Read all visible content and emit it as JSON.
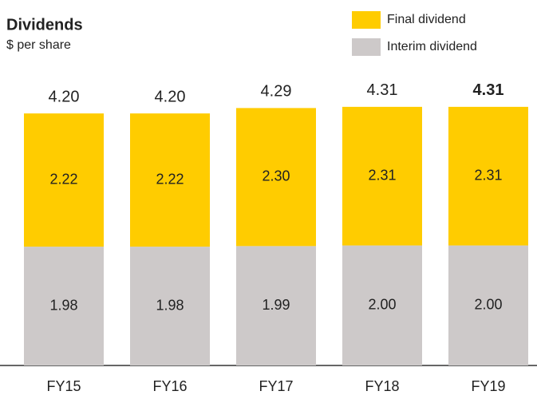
{
  "chart_data": {
    "type": "stacked_bar",
    "title": "Dividends",
    "subtitle": "$ per share",
    "categories": [
      "FY15",
      "FY16",
      "FY17",
      "FY18",
      "FY19"
    ],
    "series": [
      {
        "name": "Interim dividend",
        "color": "#cdc9c9",
        "values": [
          1.98,
          1.98,
          1.99,
          2.0,
          2.0
        ],
        "value_labels": [
          "1.98",
          "1.98",
          "1.99",
          "2.00",
          "2.00"
        ]
      },
      {
        "name": "Final dividend",
        "color": "#ffcc00",
        "values": [
          2.22,
          2.22,
          2.3,
          2.31,
          2.31
        ],
        "value_labels": [
          "2.22",
          "2.22",
          "2.30",
          "2.31",
          "2.31"
        ]
      }
    ],
    "totals": {
      "values": [
        4.2,
        4.2,
        4.29,
        4.31,
        4.31
      ],
      "value_labels": [
        "4.20",
        "4.20",
        "4.29",
        "4.31",
        "4.31"
      ]
    }
  }
}
